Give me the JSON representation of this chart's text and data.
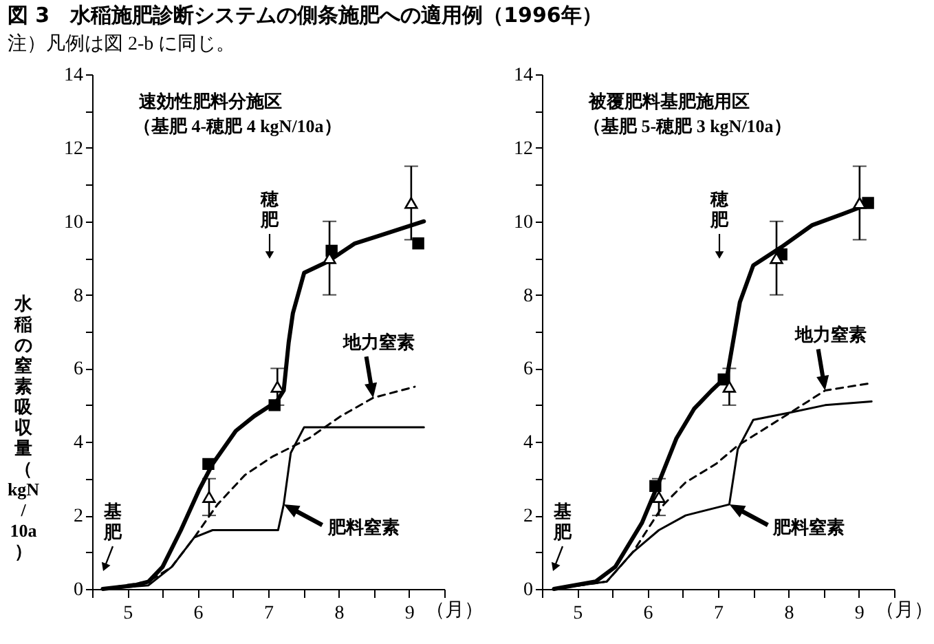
{
  "chart_data": [
    {
      "type": "line",
      "title": "図 3　水稲施肥診断システムの側条施肥への適用例（1996年）",
      "subtitle": "注）凡例は図 2-b に同じ。",
      "xlabel": "（月）",
      "ylabel": "水稲の窒素吸収量（kgN/10a）",
      "xlim": [
        5,
        10
      ],
      "xticks": [
        {
          "value": 5,
          "label": null
        },
        {
          "value": 5.5,
          "label": "5"
        },
        {
          "value": 6,
          "label": null
        },
        {
          "value": 6.5,
          "label": "6"
        },
        {
          "value": 7,
          "label": null
        },
        {
          "value": 7.5,
          "label": "7"
        },
        {
          "value": 8,
          "label": null
        },
        {
          "value": 8.5,
          "label": "8"
        },
        {
          "value": 9,
          "label": null
        },
        {
          "value": 9.5,
          "label": "9"
        },
        {
          "value": 10,
          "label": null
        }
      ],
      "ylim": [
        0,
        14
      ],
      "yticks": [
        0,
        {
          "value": 1,
          "label": null
        },
        2,
        {
          "value": 3,
          "label": null
        },
        4,
        {
          "value": 5,
          "label": null
        },
        6,
        {
          "value": 7,
          "label": null
        },
        8,
        {
          "value": 9,
          "label": null
        },
        10,
        {
          "value": 11,
          "label": null
        },
        12,
        {
          "value": 13,
          "label": null
        },
        14
      ],
      "series": [
        {
          "type": "line",
          "color": "#000000",
          "line_style": "solid",
          "marker": "none",
          "x": [
            5.15,
            5.6,
            5.8,
            6.0,
            6.26,
            6.52,
            6.71,
            7.04,
            7.3,
            7.62,
            7.72,
            7.79,
            7.85,
            8.01,
            8.34,
            8.73,
            9.06,
            9.71
          ],
          "values": [
            0,
            0.1,
            0.2,
            0.6,
            1.6,
            2.7,
            3.4,
            4.3,
            4.7,
            5.1,
            5.4,
            6.7,
            7.5,
            8.6,
            8.9,
            9.4,
            9.6,
            10.0
          ]
        },
        {
          "type": "line",
          "name": "地力窒素",
          "color": "#000000",
          "line_style": "dashed",
          "marker": "none",
          "x": [
            5.15,
            5.8,
            6.13,
            6.45,
            6.78,
            7.17,
            7.56,
            8.08,
            8.53,
            8.99,
            9.58
          ],
          "values": [
            0,
            0.2,
            0.6,
            1.4,
            2.3,
            3.1,
            3.6,
            4.1,
            4.7,
            5.2,
            5.5
          ]
        },
        {
          "type": "line",
          "name": "肥料窒素",
          "color": "#000000",
          "line_style": "solid",
          "marker": "none",
          "x": [
            5.15,
            5.8,
            6.13,
            6.45,
            6.71,
            7.04,
            7.64,
            7.72,
            7.82,
            8.01,
            9.71
          ],
          "values": [
            0,
            0.1,
            0.6,
            1.4,
            1.6,
            1.6,
            1.6,
            2.3,
            3.7,
            4.4,
            4.4
          ]
        },
        {
          "type": "scatter",
          "color": "#000000",
          "marker": "square",
          "x": [
            6.65,
            7.59,
            8.4,
            9.63
          ],
          "values": [
            3.4,
            5.0,
            9.2,
            9.4
          ]
        },
        {
          "type": "scatter",
          "color": "#000000",
          "marker": "triangle",
          "x": [
            6.66,
            7.63,
            8.37,
            9.53
          ],
          "values": [
            2.5,
            5.5,
            9.0,
            10.5
          ],
          "errors": [
            0.5,
            0.5,
            1,
            1
          ]
        }
      ],
      "annotations": [
        "速効性肥料分施区",
        "（基肥 4-穂肥 4 kgN/10a）",
        "穂肥",
        "基肥"
      ]
    },
    {
      "type": "line",
      "xlabel": "（月）",
      "xlim": [
        5,
        10
      ],
      "xticks": [
        {
          "value": 5,
          "label": null
        },
        {
          "value": 5.5,
          "label": "5"
        },
        {
          "value": 6,
          "label": null
        },
        {
          "value": 6.5,
          "label": "6"
        },
        {
          "value": 7,
          "label": null
        },
        {
          "value": 7.5,
          "label": "7"
        },
        {
          "value": 8,
          "label": null
        },
        {
          "value": 8.5,
          "label": "8"
        },
        {
          "value": 9,
          "label": null
        },
        {
          "value": 9.5,
          "label": "9"
        },
        {
          "value": 10,
          "label": null
        }
      ],
      "ylim": [
        0,
        14
      ],
      "yticks": [
        0,
        {
          "value": 1,
          "label": null
        },
        2,
        {
          "value": 3,
          "label": null
        },
        4,
        {
          "value": 5,
          "label": null
        },
        6,
        {
          "value": 7,
          "label": null
        },
        8,
        {
          "value": 9,
          "label": null
        },
        10,
        {
          "value": 11,
          "label": null
        },
        12,
        {
          "value": 13,
          "label": null
        },
        14
      ],
      "series": [
        {
          "type": "line",
          "color": "#000000",
          "line_style": "solid",
          "marker": "none",
          "x": [
            5.17,
            5.76,
            6.04,
            6.42,
            6.66,
            6.91,
            7.16,
            7.41,
            7.63,
            7.72,
            7.81,
            8.0,
            8.4,
            8.84,
            9.27,
            9.68
          ],
          "values": [
            0,
            0.2,
            0.6,
            1.8,
            2.9,
            4.1,
            4.9,
            5.4,
            5.8,
            6.8,
            7.8,
            8.8,
            9.3,
            9.9,
            10.2,
            10.5
          ]
        },
        {
          "type": "line",
          "name": "地力窒素",
          "color": "#000000",
          "line_style": "dashed",
          "marker": "none",
          "x": [
            5.17,
            5.92,
            6.29,
            6.73,
            7.04,
            7.47,
            7.78,
            8.03,
            8.53,
            9.02,
            9.68
          ],
          "values": [
            0,
            0.2,
            1.0,
            2.3,
            2.9,
            3.4,
            3.9,
            4.2,
            4.8,
            5.4,
            5.6
          ]
        },
        {
          "type": "line",
          "name": "肥料窒素",
          "color": "#000000",
          "line_style": "solid",
          "marker": "none",
          "x": [
            5.17,
            5.92,
            6.29,
            6.66,
            7.04,
            7.66,
            7.78,
            8.0,
            8.53,
            9.02,
            9.68
          ],
          "values": [
            0,
            0.2,
            1.0,
            1.6,
            2.0,
            2.3,
            3.8,
            4.6,
            4.8,
            5.0,
            5.1
          ]
        },
        {
          "type": "scatter",
          "color": "#000000",
          "marker": "square",
          "x": [
            6.61,
            7.58,
            8.4,
            9.63
          ],
          "values": [
            2.8,
            5.7,
            9.1,
            10.5
          ]
        },
        {
          "type": "scatter",
          "color": "#000000",
          "marker": "triangle",
          "x": [
            6.66,
            7.66,
            8.33,
            9.51
          ],
          "values": [
            2.5,
            5.5,
            9.0,
            10.5
          ],
          "errors": [
            0.5,
            0.5,
            1,
            1
          ]
        }
      ],
      "annotations": [
        "被覆肥料基肥施用区",
        "（基肥 5-穂肥 3 kgN/10a）",
        "穂肥",
        "基肥"
      ]
    }
  ]
}
